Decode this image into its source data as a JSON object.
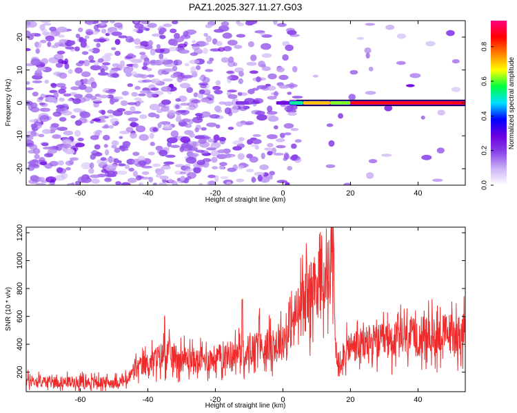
{
  "title": "PAZ1.2025.327.11.27.G03",
  "chart_data": [
    {
      "type": "heatmap",
      "xlabel": "Height of straight line (km)",
      "ylabel": "Frequency (Hz)",
      "xlim": [
        -76,
        54
      ],
      "ylim": [
        -25,
        25
      ],
      "xticks": [
        -60,
        -40,
        -20,
        0,
        20,
        40
      ],
      "yticks": [
        -20,
        -10,
        0,
        10,
        20
      ],
      "colorbar": {
        "label": "Normalized spectral amplitude",
        "range": [
          0,
          0.95
        ],
        "ticks": [
          0.0,
          0.2,
          0.4,
          0.6,
          0.8
        ],
        "colors": [
          "#ffffff",
          "#cdb3f5",
          "#8a45e8",
          "#6a00e0",
          "#0000ff",
          "#00e0ff",
          "#00ff40",
          "#ffff00",
          "#ff8000",
          "#ff0000",
          "#ff0080"
        ]
      },
      "description": "Scattered low-amplitude noise (purple) for heights below about -10 km; a strong narrow band centered at 0 Hz from about 0 km upward with red maxima between 20 and 54 km",
      "band": {
        "freq": 0,
        "segments": [
          {
            "x": [
              -14,
              -10
            ],
            "amp": 0.22
          },
          {
            "x": [
              -2,
              2
            ],
            "amp": 0.28
          },
          {
            "x": [
              2,
              6
            ],
            "amp": 0.55
          },
          {
            "x": [
              6,
              14
            ],
            "amp": 0.75
          },
          {
            "x": [
              14,
              20
            ],
            "amp": 0.65
          },
          {
            "x": [
              20,
              54
            ],
            "amp": 0.92
          }
        ]
      }
    },
    {
      "type": "line",
      "xlabel": "Height of straight line (km)",
      "ylabel": "SNR (10 * v/v)",
      "xlim": [
        -76,
        54
      ],
      "ylim": [
        60,
        1240
      ],
      "xticks": [
        -60,
        -40,
        -20,
        0,
        20,
        40
      ],
      "yticks": [
        200,
        400,
        600,
        800,
        1000,
        1200
      ],
      "series": [
        {
          "name": "SNR",
          "color": "#ee2a2a",
          "x": [
            -76,
            -70,
            -60,
            -50,
            -46,
            -44,
            -40,
            -35,
            -30,
            -25,
            -20,
            -15,
            -10,
            -5,
            0,
            2,
            5,
            8,
            10,
            12,
            14,
            15,
            15.5,
            16,
            20,
            30,
            40,
            50,
            54
          ],
          "y": [
            140,
            130,
            130,
            125,
            140,
            220,
            260,
            330,
            300,
            280,
            300,
            330,
            360,
            380,
            420,
            520,
            650,
            760,
            820,
            860,
            900,
            950,
            420,
            280,
            380,
            420,
            450,
            480,
            470
          ],
          "spikes": [
            {
              "x": -35,
              "y": 660
            },
            {
              "x": -12,
              "y": 780
            },
            {
              "x": -7,
              "y": 700
            },
            {
              "x": 7,
              "y": 1130
            },
            {
              "x": 14.5,
              "y": 1230
            }
          ]
        }
      ]
    }
  ]
}
